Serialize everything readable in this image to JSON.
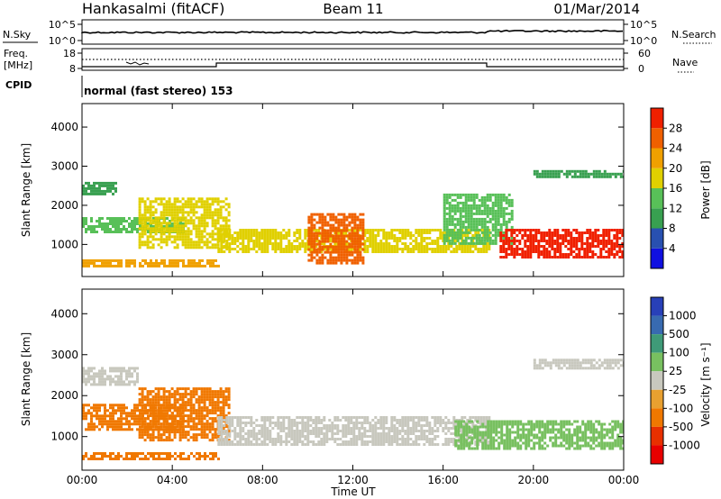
{
  "header": {
    "station": "Hankasalmi (fitACF)",
    "beam": "Beam 11",
    "date": "01/Mar/2014"
  },
  "strip": {
    "nsky_label": "N.Sky",
    "nsky_ticks": [
      "10^5",
      "10^0"
    ],
    "nsearch_label": "N.Search",
    "nsearch_ticks": [
      "10^5",
      "10^0"
    ],
    "freq_label_1": "Freq.",
    "freq_label_2": "[MHz]",
    "freq_ticks": [
      "18",
      "8"
    ],
    "nave_label": "Nave",
    "nave_ticks": [
      "60",
      "0"
    ],
    "cpid_label": "CPID",
    "cpid_text": "normal (fast stereo) 153"
  },
  "colors": {
    "power_scale": [
      "#1010e0",
      "#2850b0",
      "#38a050",
      "#58c058",
      "#e0d000",
      "#f0a000",
      "#f06000",
      "#f02000"
    ],
    "velocity_scale": [
      "#2840b8",
      "#386ab0",
      "#3f9a78",
      "#78c060",
      "#c8c8be",
      "#e8a030",
      "#f07800",
      "#e83000",
      "#e80000"
    ],
    "scatter_gray": "#c8c8be"
  },
  "chart_data": [
    {
      "type": "heatmap",
      "name": "power",
      "xlabel": "Time UT",
      "ylabel": "Slant Range [km]",
      "xlim": [
        0,
        24
      ],
      "ylim": [
        180,
        4600
      ],
      "x_ticks": [
        "00:00",
        "04:00",
        "08:00",
        "12:00",
        "16:00",
        "20:00",
        "00:00"
      ],
      "y_ticks": [
        "1000",
        "2000",
        "3000",
        "4000"
      ],
      "colorbar": {
        "label": "Power [dB]",
        "range": [
          0,
          32
        ],
        "ticks": [
          "28",
          "24",
          "20",
          "16",
          "12",
          "8",
          "4"
        ]
      },
      "bands": [
        {
          "x": [
            0,
            6.1
          ],
          "y": [
            430,
            620
          ],
          "value": 21
        },
        {
          "x": [
            0,
            4.5
          ],
          "y": [
            1300,
            1700
          ],
          "value": 15
        },
        {
          "x": [
            0,
            1.5
          ],
          "y": [
            2300,
            2600
          ],
          "value": 8
        },
        {
          "x": [
            2.5,
            6.5
          ],
          "y": [
            900,
            2200
          ],
          "value": 18
        },
        {
          "x": [
            6,
            18
          ],
          "y": [
            800,
            1400
          ],
          "value": 18
        },
        {
          "x": [
            10,
            12.5
          ],
          "y": [
            500,
            1800
          ],
          "value": 24
        },
        {
          "x": [
            16,
            19
          ],
          "y": [
            1000,
            2300
          ],
          "value": 12
        },
        {
          "x": [
            18.5,
            24
          ],
          "y": [
            700,
            1400
          ],
          "value": 28
        },
        {
          "x": [
            20,
            24
          ],
          "y": [
            2700,
            2900
          ],
          "value": 10
        }
      ]
    },
    {
      "type": "heatmap",
      "name": "velocity",
      "xlabel": "Time UT",
      "ylabel": "Slant Range [km]",
      "xlim": [
        0,
        24
      ],
      "ylim": [
        180,
        4600
      ],
      "x_ticks": [
        "00:00",
        "04:00",
        "08:00",
        "12:00",
        "16:00",
        "20:00",
        "00:00"
      ],
      "y_ticks": [
        "1000",
        "2000",
        "3000",
        "4000"
      ],
      "colorbar": {
        "label": "Velocity [m s⁻¹]",
        "ticks": [
          "1000",
          "500",
          "100",
          "25",
          "-25",
          "-100",
          "-500",
          "-1000"
        ]
      },
      "bands": [
        {
          "x": [
            0,
            6.1
          ],
          "y": [
            430,
            620
          ],
          "value": -300
        },
        {
          "x": [
            0,
            4.5
          ],
          "y": [
            1200,
            1800
          ],
          "value": -300
        },
        {
          "x": [
            0,
            2.5
          ],
          "y": [
            2300,
            2700
          ],
          "value": 0
        },
        {
          "x": [
            2.5,
            6.5
          ],
          "y": [
            900,
            2200
          ],
          "value": -200
        },
        {
          "x": [
            6,
            18
          ],
          "y": [
            800,
            1500
          ],
          "value": 0
        },
        {
          "x": [
            16.5,
            24
          ],
          "y": [
            700,
            1400
          ],
          "value": 80
        },
        {
          "x": [
            20,
            24
          ],
          "y": [
            2700,
            2900
          ],
          "value": 0
        }
      ]
    }
  ]
}
